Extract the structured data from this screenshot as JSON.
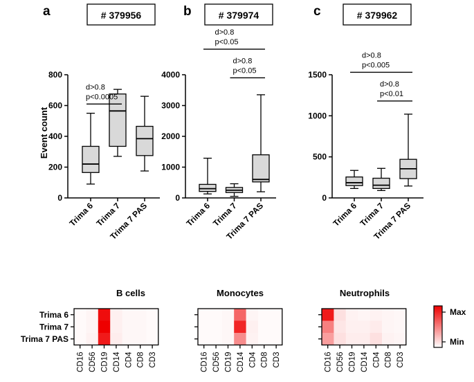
{
  "colors": {
    "box_fill": "#d9d9d9",
    "line": "#000000",
    "heat_max": "#ee0000",
    "heat_min": "#ffffff"
  },
  "chart_data": [
    {
      "type": "box",
      "panel_letter": "a",
      "title": "# 379956",
      "ylabel": "Event count",
      "ylim": [
        0,
        800
      ],
      "yticks": [
        0,
        200,
        400,
        600,
        800
      ],
      "categories": [
        "Trima 6",
        "Trima 7",
        "Trima 7 PAS"
      ],
      "boxes": [
        {
          "min": 90,
          "q1": 165,
          "median": 220,
          "q3": 335,
          "max": 550
        },
        {
          "min": 270,
          "q1": 335,
          "median": 565,
          "q3": 675,
          "max": 705
        },
        {
          "min": 175,
          "q1": 275,
          "median": 385,
          "q3": 465,
          "max": 660
        }
      ],
      "annotations": [
        {
          "from": 0,
          "to": 1,
          "y": 610,
          "lines": [
            "d>0.8",
            "p<0.0005"
          ]
        }
      ]
    },
    {
      "type": "box",
      "panel_letter": "b",
      "title": "# 379974",
      "ylabel": "",
      "ylim": [
        0,
        4000
      ],
      "yticks": [
        0,
        1000,
        2000,
        3000,
        4000
      ],
      "categories": [
        "Trima 6",
        "Trima 7",
        "Trima 7 PAS"
      ],
      "boxes": [
        {
          "min": 130,
          "q1": 210,
          "median": 300,
          "q3": 440,
          "max": 1290
        },
        {
          "min": 50,
          "q1": 175,
          "median": 250,
          "q3": 340,
          "max": 460
        },
        {
          "min": 200,
          "q1": 520,
          "median": 600,
          "q3": 1400,
          "max": 3350
        }
      ],
      "annotations": [
        {
          "from": 0,
          "to": 2,
          "y": 4830,
          "lines": [
            "d>0.8",
            "p<0.05"
          ]
        },
        {
          "from": 1,
          "to": 2,
          "y": 3900,
          "lines": [
            "d>0.8",
            "p<0.05"
          ]
        }
      ]
    },
    {
      "type": "box",
      "panel_letter": "c",
      "title": "# 379962",
      "ylabel": "",
      "ylim": [
        0,
        1500
      ],
      "yticks": [
        0,
        500,
        1000,
        1500
      ],
      "categories": [
        "Trima 6",
        "Trima 7",
        "Trima 7 PAS"
      ],
      "boxes": [
        {
          "min": 115,
          "q1": 150,
          "median": 185,
          "q3": 255,
          "max": 335
        },
        {
          "min": 90,
          "q1": 115,
          "median": 155,
          "q3": 240,
          "max": 360
        },
        {
          "min": 145,
          "q1": 235,
          "median": 355,
          "q3": 470,
          "max": 1020
        }
      ],
      "annotations": [
        {
          "from": 0,
          "to": 2,
          "y": 1530,
          "lines": [
            "d>0.8",
            "p<0.005"
          ]
        },
        {
          "from": 1,
          "to": 2,
          "y": 1180,
          "lines": [
            "d>0.8",
            "p<0.01"
          ]
        }
      ]
    },
    {
      "type": "heatmap",
      "rows": [
        "Trima 6",
        "Trima 7",
        "Trima 7 PAS"
      ],
      "columns": [
        "CD16",
        "CD56",
        "CD19",
        "CD14",
        "CD4",
        "CD8",
        "CD3"
      ],
      "legend": {
        "max_label": "Max",
        "min_label": "Min"
      },
      "panels": [
        {
          "title": "B cells",
          "show_row_labels": true,
          "values": [
            [
              0.02,
              0.04,
              0.95,
              0.06,
              0.03,
              0.03,
              0.02
            ],
            [
              0.02,
              0.04,
              1.0,
              0.06,
              0.03,
              0.03,
              0.02
            ],
            [
              0.02,
              0.05,
              0.9,
              0.07,
              0.03,
              0.03,
              0.02
            ]
          ]
        },
        {
          "title": "Monocytes",
          "show_row_labels": false,
          "values": [
            [
              0.02,
              0.02,
              0.03,
              0.6,
              0.04,
              0.02,
              0.02
            ],
            [
              0.02,
              0.02,
              0.03,
              0.85,
              0.06,
              0.02,
              0.02
            ],
            [
              0.02,
              0.02,
              0.03,
              0.45,
              0.05,
              0.02,
              0.02
            ]
          ]
        },
        {
          "title": "Neutrophils",
          "show_row_labels": false,
          "values": [
            [
              0.9,
              0.12,
              0.05,
              0.04,
              0.05,
              0.04,
              0.03
            ],
            [
              0.5,
              0.1,
              0.06,
              0.06,
              0.08,
              0.04,
              0.03
            ],
            [
              0.38,
              0.12,
              0.07,
              0.07,
              0.12,
              0.05,
              0.04
            ]
          ]
        }
      ]
    }
  ]
}
